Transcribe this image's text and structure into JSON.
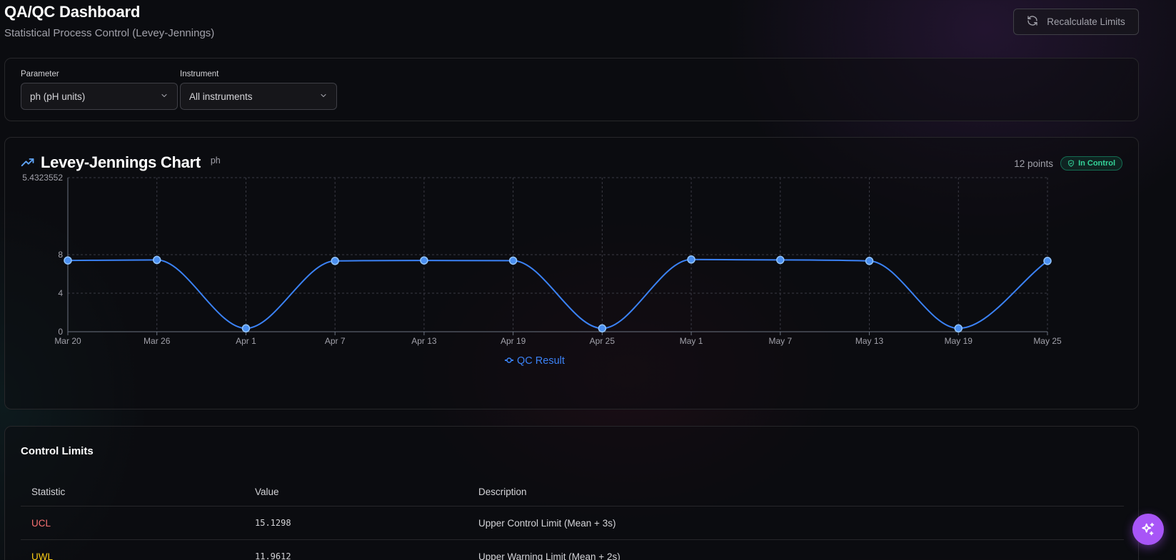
{
  "header": {
    "title": "QA/QC Dashboard",
    "subtitle": "Statistical Process Control (Levey-Jennings)",
    "recalc_label": "Recalculate Limits"
  },
  "filters": {
    "parameter_label": "Parameter",
    "parameter_value": "ph (pH units)",
    "instrument_label": "Instrument",
    "instrument_value": "All instruments"
  },
  "chart_card": {
    "title": "Levey-Jennings Chart",
    "param": "ph",
    "points": "12 points",
    "status": "In Control",
    "status_color": "#34d399"
  },
  "chart_data": {
    "type": "line",
    "x": [
      "Mar 20",
      "Mar 26",
      "Apr 1",
      "Apr 7",
      "Apr 13",
      "Apr 19",
      "Apr 25",
      "May 1",
      "May 7",
      "May 13",
      "May 19",
      "May 25"
    ],
    "series": [
      {
        "name": "QC Result",
        "color": "#3b82f6",
        "values": [
          7.4,
          7.45,
          0.35,
          7.35,
          7.4,
          7.38,
          0.35,
          7.5,
          7.45,
          7.35,
          0.35,
          7.35
        ]
      }
    ],
    "y_ticks": [
      0,
      4,
      8
    ],
    "y_max_label": "5.4323552",
    "ylim": [
      0,
      16
    ],
    "grid": true,
    "legend": "bottom-center"
  },
  "limits": {
    "title": "Control Limits",
    "headers": [
      "Statistic",
      "Value",
      "Description"
    ],
    "rows": [
      {
        "stat": "UCL",
        "value": "15.1298",
        "desc": "Upper Control Limit (Mean + 3s)",
        "color": "#f87171"
      },
      {
        "stat": "UWL",
        "value": "11.9612",
        "desc": "Upper Warning Limit (Mean + 2s)",
        "color": "#facc15"
      }
    ]
  },
  "icons": {
    "recalc": "refresh-icon",
    "trend": "trending-up-icon",
    "badge": "shield-check-icon",
    "chevron": "chevron-down-icon",
    "fab": "sparkles-icon"
  }
}
